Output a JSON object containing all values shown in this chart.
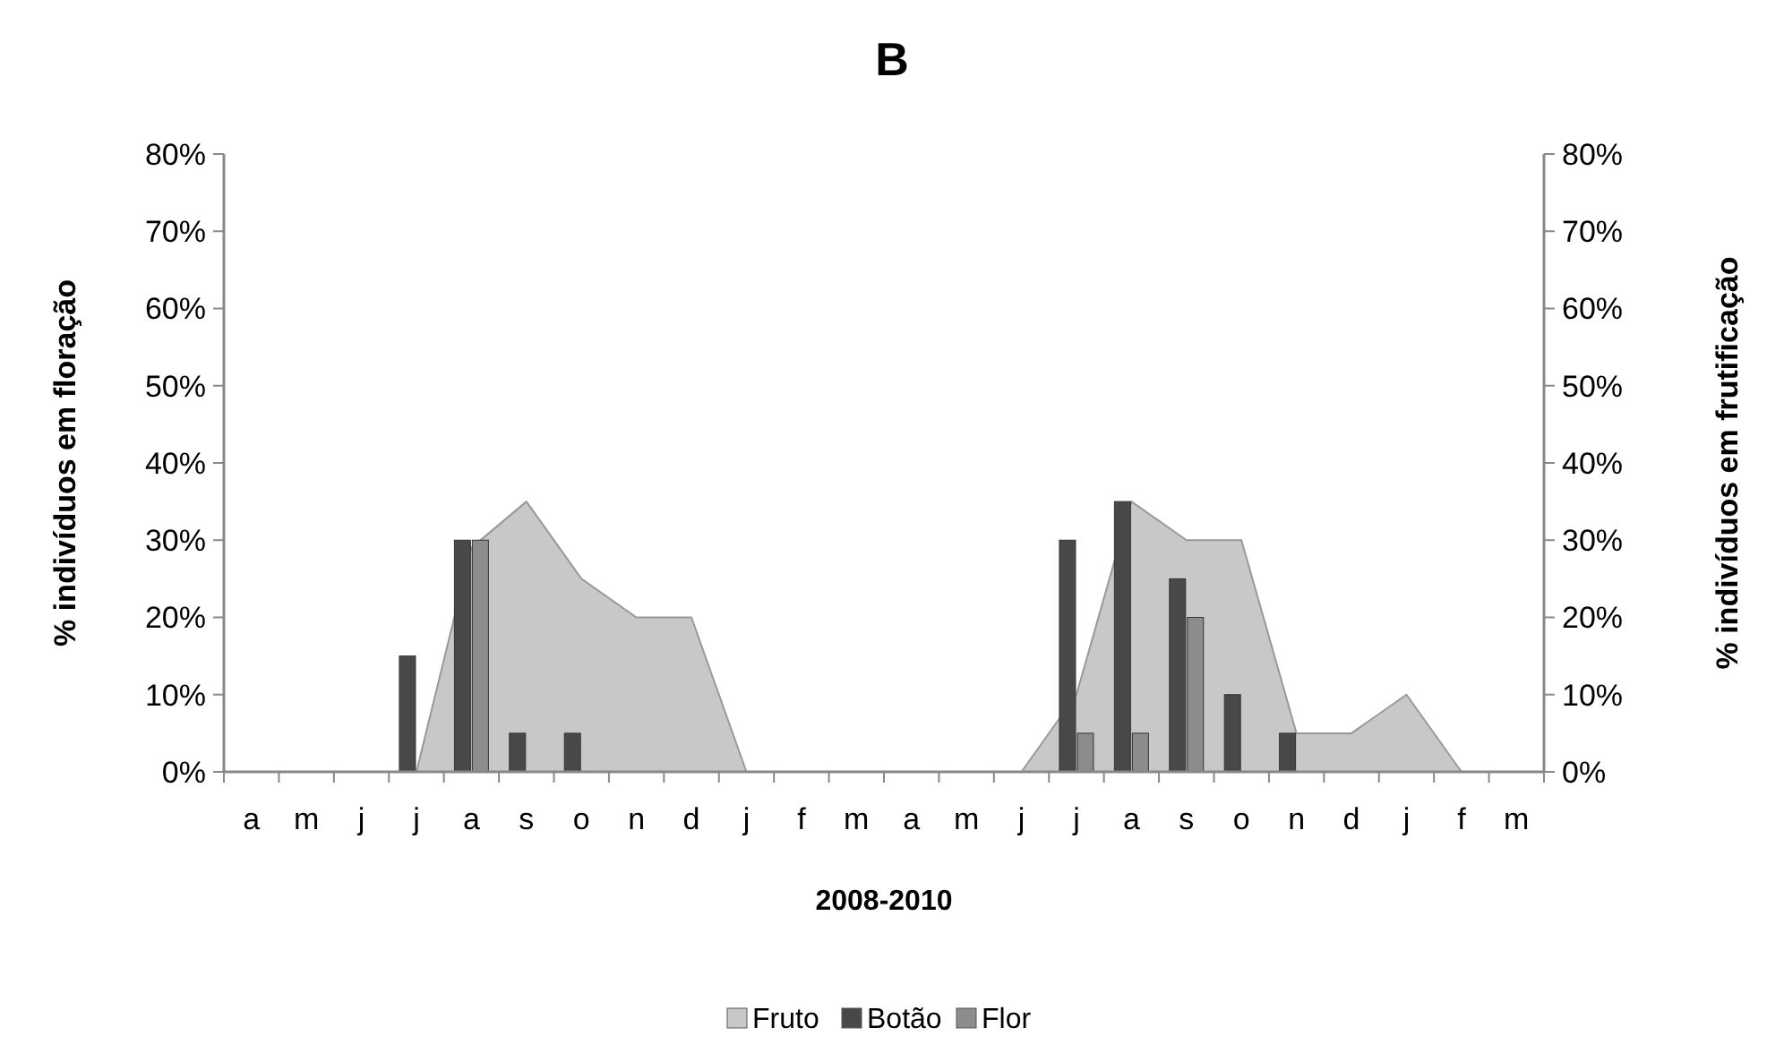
{
  "chart_data": {
    "type": "bar",
    "title": "B",
    "xlabel": "2008-2010",
    "ylabel": "% indivíduos em floração",
    "y2label": "% indivíduos em frutificação",
    "categories": [
      "a",
      "m",
      "j",
      "j",
      "a",
      "s",
      "o",
      "n",
      "d",
      "j",
      "f",
      "m",
      "a",
      "m",
      "j",
      "j",
      "a",
      "s",
      "o",
      "n",
      "d",
      "j",
      "f",
      "m"
    ],
    "series": [
      {
        "name": "Fruto",
        "type": "area",
        "axis": "y2",
        "color": "#c8c8c8",
        "values": [
          0,
          0,
          0,
          0,
          0.29,
          0.35,
          0.25,
          0.2,
          0.2,
          0,
          0,
          0,
          0,
          0,
          0,
          0.1,
          0.35,
          0.3,
          0.3,
          0.05,
          0.05,
          0.1,
          0,
          0
        ]
      },
      {
        "name": "Botão",
        "color": "#484848",
        "values": [
          0,
          0,
          0,
          0.15,
          0.3,
          0.05,
          0.05,
          0,
          0,
          0,
          0,
          0,
          0,
          0,
          0,
          0.3,
          0.35,
          0.25,
          0.1,
          0.05,
          0,
          0,
          0,
          0
        ]
      },
      {
        "name": "Flor",
        "color": "#8c8c8c",
        "values": [
          0,
          0,
          0,
          0,
          0.3,
          0,
          0,
          0,
          0,
          0,
          0,
          0,
          0,
          0,
          0,
          0.05,
          0.05,
          0.2,
          0,
          0,
          0,
          0,
          0,
          0
        ]
      }
    ],
    "ylim": [
      0,
      0.8
    ],
    "yticks": [
      {
        "value": 0,
        "label": "0%"
      },
      {
        "value": 0.1,
        "label": "10%"
      },
      {
        "value": 0.2,
        "label": "20%"
      },
      {
        "value": 0.3,
        "label": "30%"
      },
      {
        "value": 0.4,
        "label": "40%"
      },
      {
        "value": 0.5,
        "label": "50%"
      },
      {
        "value": 0.6,
        "label": "60%"
      },
      {
        "value": 0.7,
        "label": "70%"
      },
      {
        "value": 0.8,
        "label": "80%"
      }
    ],
    "y2lim": [
      0,
      0.8
    ],
    "y2ticks": [
      {
        "value": 0,
        "label": "0%"
      },
      {
        "value": 0.1,
        "label": "10%"
      },
      {
        "value": 0.2,
        "label": "20%"
      },
      {
        "value": 0.3,
        "label": "30%"
      },
      {
        "value": 0.4,
        "label": "40%"
      },
      {
        "value": 0.5,
        "label": "50%"
      },
      {
        "value": 0.6,
        "label": "60%"
      },
      {
        "value": 0.7,
        "label": "70%"
      },
      {
        "value": 0.8,
        "label": "80%"
      }
    ],
    "legend": "bottom",
    "grid": false
  }
}
